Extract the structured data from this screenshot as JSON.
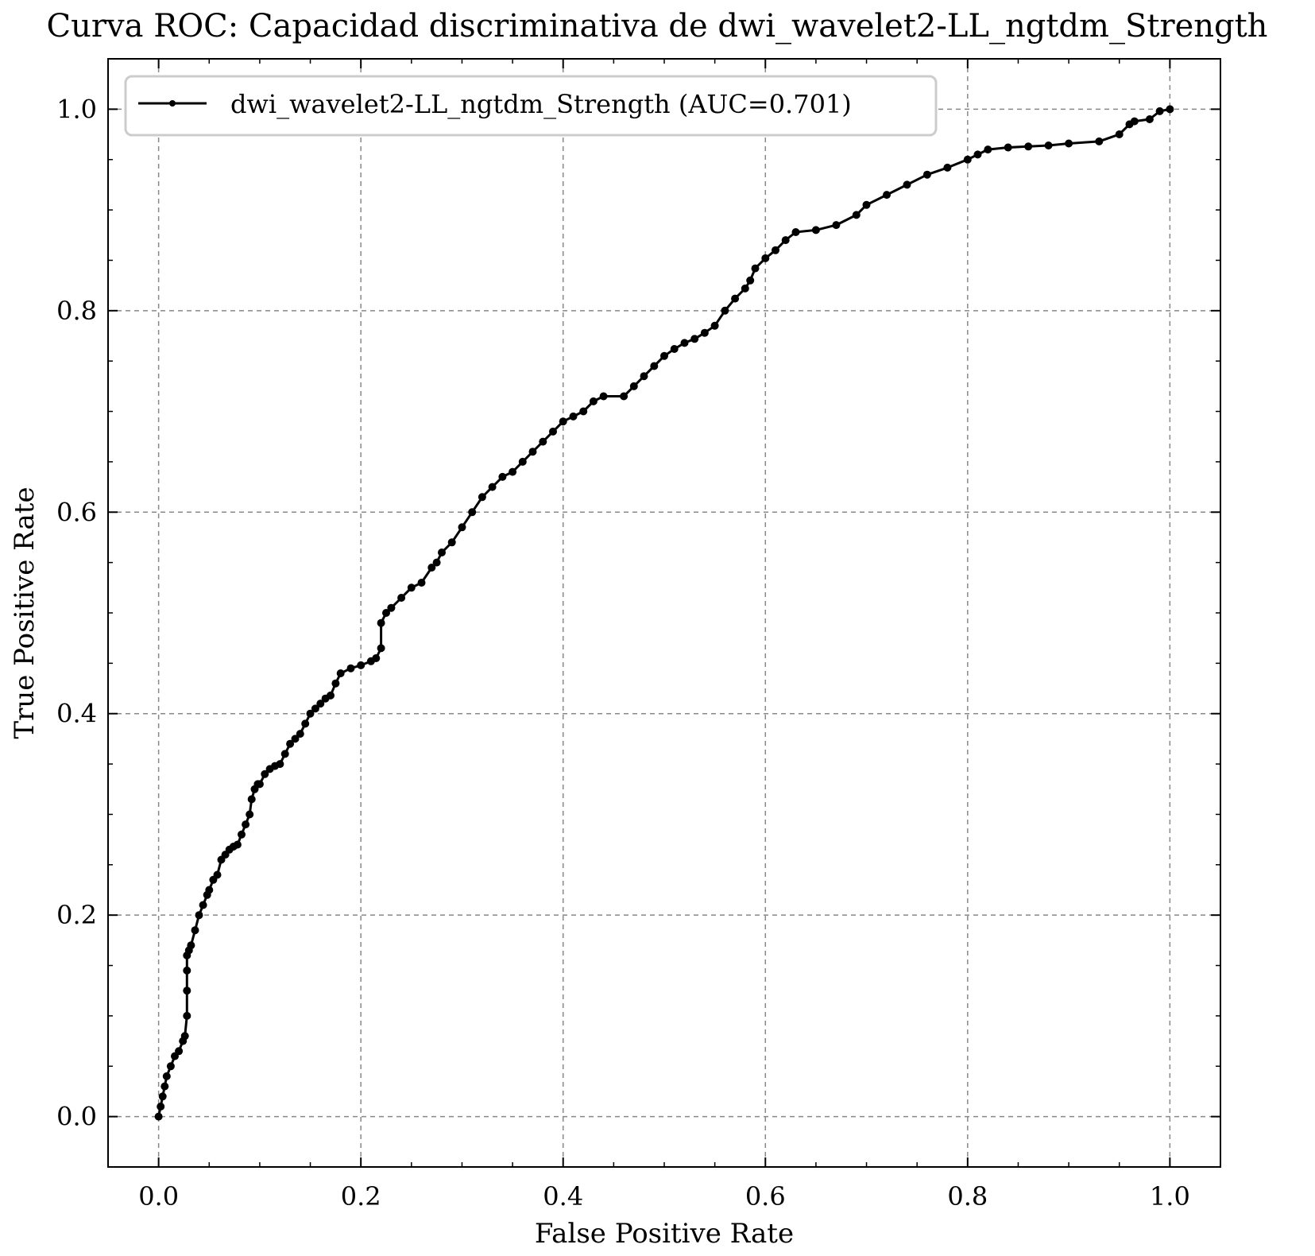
{
  "chart_data": {
    "type": "line",
    "title": "Curva ROC: Capacidad discriminativa de dwi_wavelet2-LL_ngtdm_Strength",
    "xlabel": "False Positive Rate",
    "ylabel": "True Positive Rate",
    "xlim": [
      -0.05,
      1.05
    ],
    "ylim": [
      -0.05,
      1.05
    ],
    "xticks": [
      "0.0",
      "0.2",
      "0.4",
      "0.6",
      "0.8",
      "1.0"
    ],
    "yticks": [
      "0.0",
      "0.2",
      "0.4",
      "0.6",
      "0.8",
      "1.0"
    ],
    "grid": true,
    "legend_position": "upper-left",
    "line_color": "#000000",
    "series": [
      {
        "name": "dwi_wavelet2-LL_ngtdm_Strength (AUC=0.701)",
        "x": [
          0.0,
          0.002,
          0.004,
          0.006,
          0.008,
          0.012,
          0.016,
          0.02,
          0.024,
          0.026,
          0.028,
          0.028,
          0.028,
          0.028,
          0.03,
          0.032,
          0.036,
          0.04,
          0.044,
          0.048,
          0.05,
          0.054,
          0.058,
          0.062,
          0.066,
          0.07,
          0.074,
          0.078,
          0.082,
          0.086,
          0.09,
          0.092,
          0.095,
          0.098,
          0.1,
          0.105,
          0.11,
          0.115,
          0.12,
          0.125,
          0.13,
          0.135,
          0.14,
          0.145,
          0.15,
          0.155,
          0.16,
          0.165,
          0.17,
          0.175,
          0.18,
          0.19,
          0.2,
          0.21,
          0.215,
          0.22,
          0.22,
          0.225,
          0.23,
          0.24,
          0.25,
          0.26,
          0.27,
          0.275,
          0.28,
          0.29,
          0.3,
          0.31,
          0.32,
          0.33,
          0.34,
          0.35,
          0.36,
          0.37,
          0.38,
          0.39,
          0.4,
          0.41,
          0.42,
          0.43,
          0.44,
          0.46,
          0.47,
          0.48,
          0.49,
          0.5,
          0.51,
          0.52,
          0.53,
          0.54,
          0.55,
          0.56,
          0.57,
          0.58,
          0.585,
          0.59,
          0.6,
          0.61,
          0.62,
          0.63,
          0.65,
          0.67,
          0.69,
          0.7,
          0.72,
          0.74,
          0.76,
          0.78,
          0.8,
          0.81,
          0.82,
          0.84,
          0.86,
          0.88,
          0.9,
          0.93,
          0.95,
          0.96,
          0.965,
          0.98,
          0.99,
          1.0
        ],
        "y": [
          0.0,
          0.01,
          0.02,
          0.03,
          0.04,
          0.05,
          0.06,
          0.065,
          0.075,
          0.08,
          0.1,
          0.125,
          0.145,
          0.16,
          0.165,
          0.17,
          0.185,
          0.2,
          0.21,
          0.22,
          0.225,
          0.235,
          0.24,
          0.255,
          0.26,
          0.265,
          0.268,
          0.27,
          0.28,
          0.29,
          0.3,
          0.315,
          0.325,
          0.33,
          0.33,
          0.34,
          0.345,
          0.348,
          0.35,
          0.36,
          0.37,
          0.375,
          0.38,
          0.39,
          0.4,
          0.405,
          0.41,
          0.415,
          0.418,
          0.43,
          0.44,
          0.445,
          0.448,
          0.452,
          0.455,
          0.465,
          0.49,
          0.5,
          0.505,
          0.515,
          0.525,
          0.53,
          0.545,
          0.55,
          0.56,
          0.57,
          0.585,
          0.6,
          0.615,
          0.625,
          0.635,
          0.64,
          0.65,
          0.66,
          0.67,
          0.68,
          0.69,
          0.695,
          0.7,
          0.71,
          0.715,
          0.715,
          0.725,
          0.735,
          0.745,
          0.755,
          0.762,
          0.768,
          0.772,
          0.778,
          0.785,
          0.8,
          0.812,
          0.822,
          0.83,
          0.842,
          0.852,
          0.86,
          0.87,
          0.878,
          0.88,
          0.885,
          0.895,
          0.905,
          0.915,
          0.925,
          0.935,
          0.942,
          0.95,
          0.955,
          0.96,
          0.962,
          0.963,
          0.964,
          0.966,
          0.968,
          0.975,
          0.985,
          0.988,
          0.99,
          0.998,
          1.0
        ]
      }
    ]
  }
}
